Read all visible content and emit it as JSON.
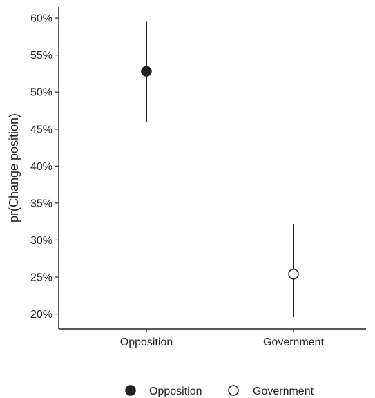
{
  "chart_data": {
    "type": "scatter",
    "title": "",
    "xlabel": "",
    "ylabel": "pr(Change position)",
    "ylim": [
      0.18,
      0.615
    ],
    "yticks": [
      0.2,
      0.25,
      0.3,
      0.35,
      0.4,
      0.45,
      0.5,
      0.55,
      0.6
    ],
    "ytick_labels": [
      "20%",
      "25%",
      "30%",
      "35%",
      "40%",
      "45%",
      "50%",
      "55%",
      "60%"
    ],
    "categories": [
      "Opposition",
      "Government"
    ],
    "grid": false,
    "legend": {
      "placement": "bottom",
      "entries": [
        "Opposition",
        "Government"
      ]
    },
    "series": [
      {
        "name": "Opposition",
        "x": "Opposition",
        "value": 0.528,
        "lower": 0.46,
        "upper": 0.595,
        "marker": "filled-circle",
        "color": "#222222"
      },
      {
        "name": "Government",
        "x": "Government",
        "value": 0.254,
        "lower": 0.196,
        "upper": 0.322,
        "marker": "open-circle",
        "color": "#222222"
      }
    ]
  }
}
